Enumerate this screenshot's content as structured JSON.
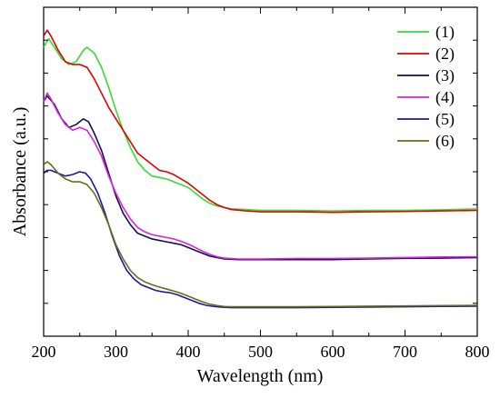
{
  "chart_data": {
    "type": "line",
    "xlabel": "Wavelength (nm)",
    "ylabel": "Absorbance (a.u.)",
    "xlim": [
      200,
      800
    ],
    "xticks": [
      200,
      300,
      400,
      500,
      600,
      700,
      800
    ],
    "y_tick_labels": false,
    "grid": false,
    "legend_position": "top-right",
    "series": [
      {
        "name": "(1)",
        "color": "#33dd33",
        "x": [
          200,
          207,
          215,
          225,
          235,
          245,
          255,
          260,
          270,
          280,
          290,
          300,
          310,
          320,
          330,
          340,
          350,
          360,
          370,
          380,
          390,
          400,
          410,
          420,
          430,
          440,
          450,
          460,
          480,
          500,
          550,
          600,
          650,
          700,
          750,
          800
        ],
        "y": [
          0.91,
          0.94,
          0.91,
          0.87,
          0.85,
          0.86,
          0.9,
          0.91,
          0.89,
          0.84,
          0.77,
          0.69,
          0.62,
          0.56,
          0.51,
          0.48,
          0.46,
          0.455,
          0.45,
          0.44,
          0.43,
          0.42,
          0.4,
          0.38,
          0.365,
          0.355,
          0.35,
          0.345,
          0.343,
          0.34,
          0.34,
          0.338,
          0.34,
          0.34,
          0.342,
          0.345
        ]
      },
      {
        "name": "(2)",
        "color": "#e00000",
        "x": [
          200,
          205,
          210,
          220,
          230,
          240,
          250,
          260,
          270,
          280,
          290,
          300,
          310,
          320,
          330,
          340,
          350,
          360,
          370,
          380,
          390,
          400,
          410,
          420,
          430,
          440,
          450,
          460,
          480,
          500,
          550,
          600,
          650,
          700,
          750,
          800
        ],
        "y": [
          0.95,
          0.97,
          0.95,
          0.9,
          0.86,
          0.85,
          0.85,
          0.84,
          0.8,
          0.75,
          0.7,
          0.66,
          0.62,
          0.58,
          0.54,
          0.52,
          0.5,
          0.48,
          0.475,
          0.465,
          0.45,
          0.435,
          0.415,
          0.395,
          0.375,
          0.36,
          0.35,
          0.343,
          0.338,
          0.335,
          0.335,
          0.333,
          0.335,
          0.336,
          0.338,
          0.34
        ]
      },
      {
        "name": "(3)",
        "color": "#10104a",
        "x": [
          200,
          205,
          215,
          225,
          235,
          245,
          255,
          262,
          270,
          280,
          290,
          300,
          310,
          320,
          330,
          340,
          350,
          360,
          370,
          380,
          390,
          400,
          410,
          420,
          430,
          440,
          450,
          470,
          500,
          550,
          600,
          650,
          700,
          750,
          800
        ],
        "y": [
          0.72,
          0.74,
          0.71,
          0.66,
          0.63,
          0.64,
          0.66,
          0.65,
          0.61,
          0.55,
          0.47,
          0.39,
          0.33,
          0.29,
          0.26,
          0.25,
          0.24,
          0.235,
          0.23,
          0.225,
          0.22,
          0.21,
          0.2,
          0.19,
          0.18,
          0.175,
          0.17,
          0.168,
          0.168,
          0.168,
          0.168,
          0.17,
          0.172,
          0.173,
          0.175
        ]
      },
      {
        "name": "(4)",
        "color": "#dd22dd",
        "x": [
          200,
          205,
          210,
          220,
          230,
          240,
          250,
          260,
          270,
          280,
          290,
          300,
          310,
          320,
          330,
          340,
          350,
          360,
          370,
          380,
          390,
          400,
          410,
          420,
          430,
          440,
          450,
          470,
          500,
          550,
          600,
          650,
          700,
          750,
          800
        ],
        "y": [
          0.72,
          0.75,
          0.73,
          0.68,
          0.64,
          0.62,
          0.63,
          0.62,
          0.58,
          0.53,
          0.46,
          0.4,
          0.35,
          0.31,
          0.28,
          0.265,
          0.255,
          0.25,
          0.245,
          0.24,
          0.232,
          0.222,
          0.21,
          0.197,
          0.186,
          0.178,
          0.173,
          0.17,
          0.17,
          0.172,
          0.172,
          0.173,
          0.175,
          0.177,
          0.178
        ]
      },
      {
        "name": "(5)",
        "color": "#1a1a9a",
        "x": [
          200,
          205,
          210,
          220,
          230,
          240,
          250,
          258,
          265,
          275,
          285,
          295,
          305,
          315,
          325,
          335,
          345,
          355,
          365,
          375,
          385,
          395,
          405,
          415,
          425,
          435,
          445,
          460,
          480,
          500,
          550,
          600,
          650,
          700,
          750,
          800
        ],
        "y": [
          0.47,
          0.48,
          0.48,
          0.47,
          0.46,
          0.465,
          0.475,
          0.47,
          0.45,
          0.4,
          0.33,
          0.25,
          0.18,
          0.13,
          0.1,
          0.08,
          0.07,
          0.06,
          0.055,
          0.052,
          0.045,
          0.035,
          0.025,
          0.015,
          0.008,
          0.004,
          0.002,
          0.0,
          0.0,
          0.0,
          0.0,
          0.001,
          0.002,
          0.003,
          0.004,
          0.005
        ]
      },
      {
        "name": "(6)",
        "color": "#6b6b1a",
        "x": [
          200,
          205,
          210,
          220,
          230,
          240,
          250,
          260,
          270,
          280,
          290,
          300,
          310,
          320,
          330,
          340,
          350,
          360,
          370,
          380,
          390,
          400,
          410,
          420,
          430,
          440,
          450,
          460,
          480,
          500,
          550,
          600,
          650,
          700,
          750,
          800
        ],
        "y": [
          0.5,
          0.51,
          0.5,
          0.47,
          0.45,
          0.44,
          0.44,
          0.43,
          0.4,
          0.35,
          0.29,
          0.22,
          0.17,
          0.13,
          0.105,
          0.09,
          0.08,
          0.072,
          0.065,
          0.058,
          0.05,
          0.04,
          0.03,
          0.02,
          0.012,
          0.007,
          0.004,
          0.003,
          0.003,
          0.003,
          0.003,
          0.004,
          0.005,
          0.006,
          0.007,
          0.008
        ]
      }
    ]
  }
}
